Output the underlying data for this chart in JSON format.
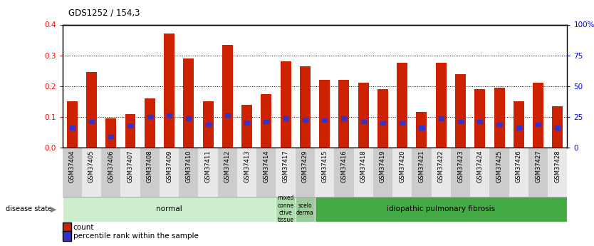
{
  "title": "GDS1252 / 154,3",
  "samples": [
    "GSM37404",
    "GSM37405",
    "GSM37406",
    "GSM37407",
    "GSM37408",
    "GSM37409",
    "GSM37410",
    "GSM37411",
    "GSM37412",
    "GSM37413",
    "GSM37414",
    "GSM37417",
    "GSM37429",
    "GSM37415",
    "GSM37416",
    "GSM37418",
    "GSM37419",
    "GSM37420",
    "GSM37421",
    "GSM37422",
    "GSM37423",
    "GSM37424",
    "GSM37425",
    "GSM37426",
    "GSM37427",
    "GSM37428"
  ],
  "count_values": [
    0.15,
    0.245,
    0.095,
    0.11,
    0.16,
    0.37,
    0.29,
    0.15,
    0.335,
    0.14,
    0.175,
    0.28,
    0.265,
    0.22,
    0.22,
    0.21,
    0.19,
    0.275,
    0.115,
    0.275,
    0.24,
    0.19,
    0.195,
    0.15,
    0.21,
    0.135
  ],
  "percentile_values": [
    0.065,
    0.085,
    0.035,
    0.07,
    0.1,
    0.105,
    0.095,
    0.075,
    0.105,
    0.08,
    0.085,
    0.095,
    0.09,
    0.09,
    0.095,
    0.085,
    0.08,
    0.08,
    0.065,
    0.095,
    0.085,
    0.085,
    0.075,
    0.065,
    0.075,
    0.065
  ],
  "bar_color": "#cc2200",
  "dot_color": "#3333cc",
  "ylim_left": [
    0,
    0.4
  ],
  "ylim_right": [
    0,
    100
  ],
  "yticks_left": [
    0,
    0.1,
    0.2,
    0.3,
    0.4
  ],
  "yticks_right": [
    0,
    25,
    50,
    75,
    100
  ],
  "disease_bands": [
    {
      "label": "normal",
      "start": 0,
      "end": 11,
      "color": "#cceecc"
    },
    {
      "label": "mixed\nconne\nctive\ntissue",
      "start": 11,
      "end": 12,
      "color": "#aaddaa"
    },
    {
      "label": "scelo\nderma",
      "start": 12,
      "end": 13,
      "color": "#99cc99"
    },
    {
      "label": "idiopathic pulmonary fibrosis",
      "start": 13,
      "end": 26,
      "color": "#44aa44"
    }
  ],
  "disease_state_label": "disease state",
  "legend_items": [
    {
      "label": "count",
      "color": "#cc2200"
    },
    {
      "label": "percentile rank within the sample",
      "color": "#3333cc"
    }
  ],
  "tick_bg_even": "#cccccc",
  "tick_bg_odd": "#e8e8e8"
}
